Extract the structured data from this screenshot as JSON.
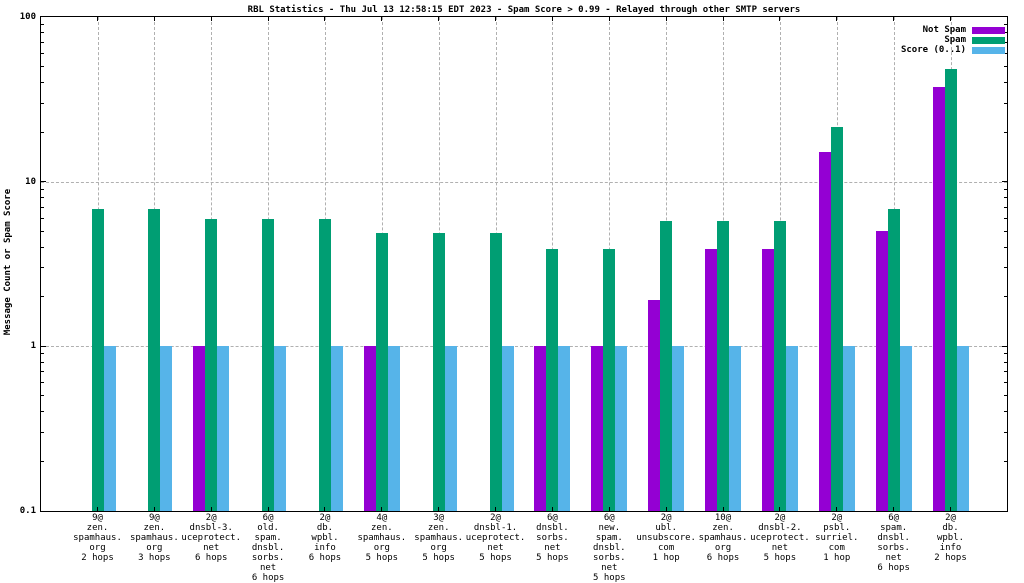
{
  "title": "RBL Statistics - Thu Jul 13 12:58:15 EDT 2023 - Spam Score > 0.99 - Relayed through other SMTP servers",
  "colors": {
    "not_spam": "#9400d3",
    "spam": "#009e73",
    "score": "#56b4e9",
    "grid": "#b0b0b0",
    "axis": "#000000",
    "background": "#ffffff"
  },
  "chart_data": {
    "type": "bar",
    "title": "RBL Statistics - Thu Jul 13 12:58:15 EDT 2023 - Spam Score > 0.99 - Relayed through other SMTP servers",
    "ylabel": "Message Count or Spam Score",
    "xlabel": "",
    "yscale": "log",
    "ylim": [
      0.1,
      100
    ],
    "ytick_values": [
      0.1,
      1,
      10,
      100
    ],
    "ytick_labels": [
      "0.1",
      "1",
      "10",
      "100"
    ],
    "grid": true,
    "legend_position": "top-right",
    "categories": [
      [
        "9@",
        "zen.",
        "spamhaus.",
        "org",
        "2 hops"
      ],
      [
        "9@",
        "zen.",
        "spamhaus.",
        "org",
        "3 hops"
      ],
      [
        "2@",
        "dnsbl-3.",
        "uceprotect.",
        "net",
        "6 hops"
      ],
      [
        "6@",
        "old.",
        "spam.",
        "dnsbl.",
        "sorbs.",
        "net",
        "6 hops"
      ],
      [
        "2@",
        "db.",
        "wpbl.",
        "info",
        "6 hops"
      ],
      [
        "4@",
        "zen.",
        "spamhaus.",
        "org",
        "5 hops"
      ],
      [
        "3@",
        "zen.",
        "spamhaus.",
        "org",
        "5 hops"
      ],
      [
        "2@",
        "dnsbl-1.",
        "uceprotect.",
        "net",
        "5 hops"
      ],
      [
        "6@",
        "dnsbl.",
        "sorbs.",
        "net",
        "5 hops"
      ],
      [
        "6@",
        "new.",
        "spam.",
        "dnsbl.",
        "sorbs.",
        "net",
        "5 hops"
      ],
      [
        "2@",
        "ubl.",
        "unsubscore.",
        "com",
        "1 hop"
      ],
      [
        "10@",
        "zen.",
        "spamhaus.",
        "org",
        "6 hops"
      ],
      [
        "2@",
        "dnsbl-2.",
        "uceprotect.",
        "net",
        "5 hops"
      ],
      [
        "2@",
        "psbl.",
        "surriel.",
        "com",
        "1 hop"
      ],
      [
        "6@",
        "spam.",
        "dnsbl.",
        "sorbs.",
        "net",
        "6 hops"
      ],
      [
        "2@",
        "db.",
        "wpbl.",
        "info",
        "2 hops"
      ]
    ],
    "series": [
      {
        "name": "Not Spam",
        "color": "#9400d3",
        "values": [
          null,
          null,
          1,
          null,
          null,
          1,
          null,
          null,
          1,
          1,
          1.9,
          3.9,
          3.9,
          15.2,
          5,
          37.5
        ]
      },
      {
        "name": "Spam",
        "color": "#009e73",
        "values": [
          6.8,
          6.8,
          5.9,
          5.9,
          5.9,
          4.9,
          4.9,
          4.9,
          3.9,
          3.9,
          5.8,
          5.8,
          5.8,
          21.5,
          6.8,
          48
        ]
      },
      {
        "name": "Score (0..1)",
        "color": "#56b4e9",
        "values": [
          1,
          1,
          1,
          1,
          1,
          1,
          1,
          1,
          1,
          1,
          1,
          1,
          1,
          1,
          1,
          1
        ]
      }
    ]
  }
}
